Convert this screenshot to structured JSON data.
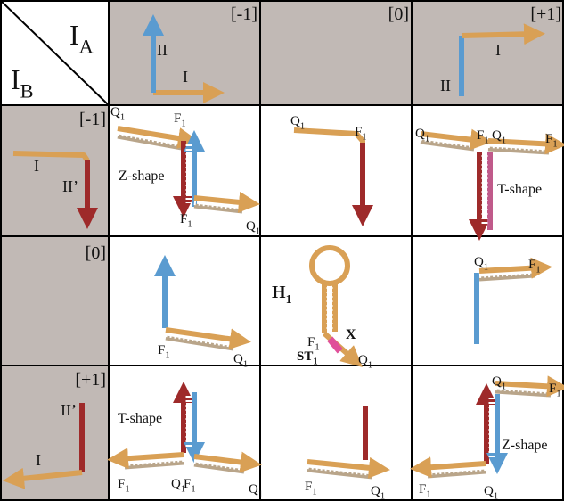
{
  "corner": {
    "a": {
      "main": "I",
      "sub": "A"
    },
    "b": {
      "main": "I",
      "sub": "B"
    }
  },
  "columns": [
    {
      "state": "[-1]",
      "strands": [
        "II",
        "I"
      ]
    },
    {
      "state": "[0]"
    },
    {
      "state": "[+1]",
      "strands": [
        "I",
        "II"
      ]
    }
  ],
  "rows": [
    {
      "state": "[-1]",
      "strands": [
        "I",
        "II’"
      ]
    },
    {
      "state": "[0]"
    },
    {
      "state": "[+1]",
      "strands": [
        "II’",
        "I"
      ]
    }
  ],
  "cells": [
    [
      {
        "shape": "Z-shape",
        "labels": [
          {
            "main": "Q",
            "sub": "1"
          },
          {
            "main": "F",
            "sub": "1"
          },
          {
            "main": "F",
            "sub": "1"
          },
          {
            "main": "Q",
            "sub": "1"
          }
        ]
      },
      {
        "labels": [
          {
            "main": "Q",
            "sub": "1"
          },
          {
            "main": "F",
            "sub": "1"
          }
        ]
      },
      {
        "shape": "T-shape",
        "labels": [
          {
            "main": "Q",
            "sub": "1"
          },
          {
            "main": "F",
            "sub": "1"
          },
          {
            "main": "Q",
            "sub": "1"
          },
          {
            "main": "F",
            "sub": "1"
          }
        ]
      }
    ],
    [
      {
        "labels": [
          {
            "main": "F",
            "sub": "1"
          },
          {
            "main": "Q",
            "sub": "1"
          }
        ]
      },
      {
        "labels": [
          {
            "main": "H",
            "sub": "1"
          },
          {
            "main": "F",
            "sub": "1"
          },
          {
            "main": "X"
          },
          {
            "main": "ST",
            "sub": "1"
          },
          {
            "main": "Q",
            "sub": "1"
          }
        ]
      },
      {
        "labels": [
          {
            "main": "Q",
            "sub": "1"
          },
          {
            "main": "F",
            "sub": "1"
          }
        ]
      }
    ],
    [
      {
        "shape": "T-shape",
        "labels": [
          {
            "main": "F",
            "sub": "1"
          },
          {
            "main": "Q",
            "sub": "1"
          },
          {
            "main": "F",
            "sub": "1"
          },
          {
            "main": "Q",
            "sub": "1"
          }
        ]
      },
      {
        "labels": [
          {
            "main": "F",
            "sub": "1"
          },
          {
            "main": "Q",
            "sub": "1"
          }
        ]
      },
      {
        "shape": "Z-shape",
        "labels": [
          {
            "main": "Q",
            "sub": "1"
          },
          {
            "main": "F",
            "sub": "1"
          },
          {
            "main": "F",
            "sub": "1"
          },
          {
            "main": "Q",
            "sub": "1"
          }
        ]
      }
    ]
  ]
}
